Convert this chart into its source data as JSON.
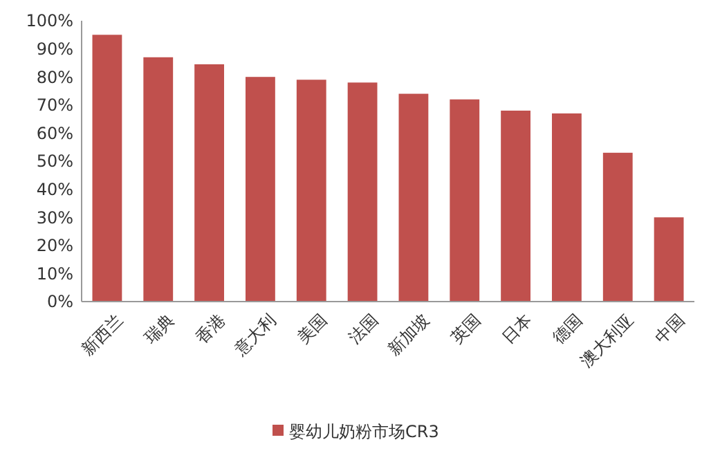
{
  "chart_data": {
    "type": "bar",
    "categories": [
      "新西兰",
      "瑞典",
      "香港",
      "意大利",
      "美国",
      "法国",
      "新加坡",
      "英国",
      "日本",
      "德国",
      "澳大利亚",
      "中国"
    ],
    "series": [
      {
        "name": "婴幼儿奶粉市场CR3",
        "color": "#c0504d",
        "values": [
          95,
          87,
          84.5,
          80,
          79,
          78,
          74,
          72,
          68,
          67,
          53,
          30
        ]
      }
    ],
    "ylim": [
      0,
      100
    ],
    "yticks": [
      {
        "value": 0,
        "label": "0%"
      },
      {
        "value": 10,
        "label": "10%"
      },
      {
        "value": 20,
        "label": "20%"
      },
      {
        "value": 30,
        "label": "30%"
      },
      {
        "value": 40,
        "label": "40%"
      },
      {
        "value": 50,
        "label": "50%"
      },
      {
        "value": 60,
        "label": "60%"
      },
      {
        "value": 70,
        "label": "70%"
      },
      {
        "value": 80,
        "label": "80%"
      },
      {
        "value": 90,
        "label": "90%"
      },
      {
        "value": 100,
        "label": "100%"
      }
    ],
    "grid": false,
    "legend": "bottom"
  }
}
